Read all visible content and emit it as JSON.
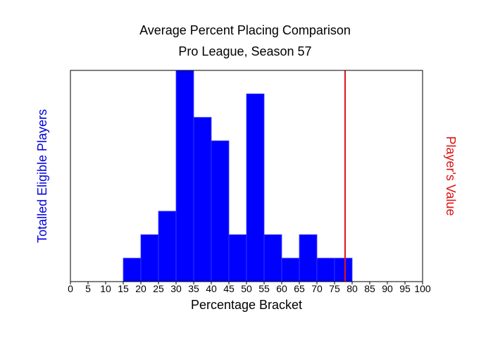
{
  "chart_data": {
    "type": "bar",
    "title": "Average Percent Placing Comparison",
    "subtitle": "Pro League, Season 57",
    "xlabel": "Percentage Bracket",
    "ylabel": "Totalled Eligible Players",
    "y2label": "Player's Value",
    "x_ticks": [
      "0",
      "5",
      "10",
      "15",
      "20",
      "25",
      "30",
      "35",
      "40",
      "45",
      "50",
      "55",
      "60",
      "65",
      "70",
      "75",
      "80",
      "85",
      "90",
      "95",
      "100"
    ],
    "bin_width": 5,
    "bins": [
      {
        "start": 15,
        "value": 1
      },
      {
        "start": 20,
        "value": 2
      },
      {
        "start": 25,
        "value": 3
      },
      {
        "start": 30,
        "value": 9
      },
      {
        "start": 35,
        "value": 7
      },
      {
        "start": 40,
        "value": 6
      },
      {
        "start": 45,
        "value": 2
      },
      {
        "start": 50,
        "value": 8
      },
      {
        "start": 55,
        "value": 2
      },
      {
        "start": 60,
        "value": 1
      },
      {
        "start": 65,
        "value": 2
      },
      {
        "start": 70,
        "value": 1
      },
      {
        "start": 75,
        "value": 1
      }
    ],
    "xlim": [
      0,
      100
    ],
    "ylim": [
      0,
      9
    ],
    "player_value": 78,
    "grid": false,
    "colors": {
      "bars": "#0000ff",
      "bar_edge": "#3c3cff",
      "player_line": "#e0141e",
      "ylabel": "#0000dd",
      "y2label": "#dd1111"
    }
  }
}
